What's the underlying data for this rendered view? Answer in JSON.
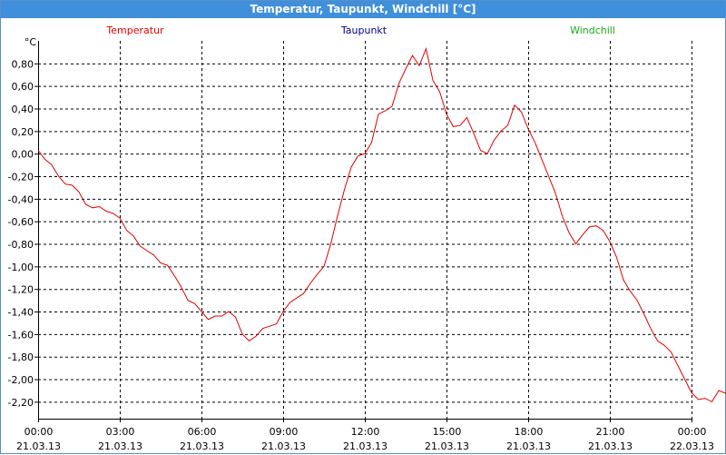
{
  "window": {
    "title": "Temperatur, Taupunkt, Windchill [°C]"
  },
  "colors": {
    "titlebar": "#3f8fdb",
    "temperature": "#e00000",
    "dewpoint": "#00008b",
    "windchill": "#1aa81a",
    "grid": "#000000"
  },
  "chart_data": {
    "type": "line",
    "title": "Temperatur, Taupunkt, Windchill [°C]",
    "ylabel": "°C",
    "xlim": [
      0,
      24
    ],
    "ylim": [
      -2.35,
      1.0
    ],
    "grid": true,
    "legend_placement": "top",
    "y_ticks": [
      0.8,
      0.6,
      0.4,
      0.2,
      0.0,
      -0.2,
      -0.4,
      -0.6,
      -0.8,
      -1.0,
      -1.2,
      -1.4,
      -1.6,
      -1.8,
      -2.0,
      -2.2
    ],
    "y_tick_labels": [
      "0,80",
      "0,60",
      "0,40",
      "0,20",
      "0,00",
      "-0,20",
      "-0,40",
      "-0,60",
      "-0,80",
      "-1,00",
      "-1,20",
      "-1,40",
      "-1,60",
      "-1,80",
      "-2,00",
      "-2,20"
    ],
    "x_ticks": [
      0,
      3,
      6,
      9,
      12,
      15,
      18,
      21,
      24
    ],
    "x_tick_labels": [
      {
        "time": "00:00",
        "date": "21.03.13"
      },
      {
        "time": "03:00",
        "date": "21.03.13"
      },
      {
        "time": "06:00",
        "date": "21.03.13"
      },
      {
        "time": "09:00",
        "date": "21.03.13"
      },
      {
        "time": "12:00",
        "date": "21.03.13"
      },
      {
        "time": "15:00",
        "date": "21.03.13"
      },
      {
        "time": "18:00",
        "date": "21.03.13"
      },
      {
        "time": "21:00",
        "date": "21.03.13"
      },
      {
        "time": "00:00",
        "date": "22.03.13"
      }
    ],
    "series": [
      {
        "name": "Temperatur",
        "color": "#e00000",
        "points": [
          [
            0.0,
            0.03
          ],
          [
            0.25,
            -0.05
          ],
          [
            0.5,
            -0.1
          ],
          [
            0.75,
            -0.2
          ],
          [
            1.0,
            -0.27
          ],
          [
            1.25,
            -0.28
          ],
          [
            1.5,
            -0.34
          ],
          [
            1.75,
            -0.45
          ],
          [
            2.0,
            -0.48
          ],
          [
            2.25,
            -0.47
          ],
          [
            2.5,
            -0.51
          ],
          [
            2.75,
            -0.53
          ],
          [
            3.0,
            -0.57
          ],
          [
            3.25,
            -0.68
          ],
          [
            3.5,
            -0.73
          ],
          [
            3.75,
            -0.82
          ],
          [
            4.0,
            -0.86
          ],
          [
            4.25,
            -0.9
          ],
          [
            4.5,
            -0.97
          ],
          [
            4.75,
            -0.99
          ],
          [
            5.0,
            -1.08
          ],
          [
            5.25,
            -1.18
          ],
          [
            5.5,
            -1.3
          ],
          [
            5.75,
            -1.33
          ],
          [
            6.0,
            -1.4
          ],
          [
            6.25,
            -1.47
          ],
          [
            6.5,
            -1.44
          ],
          [
            6.75,
            -1.44
          ],
          [
            7.0,
            -1.4
          ],
          [
            7.25,
            -1.45
          ],
          [
            7.5,
            -1.6
          ],
          [
            7.75,
            -1.66
          ],
          [
            8.0,
            -1.62
          ],
          [
            8.25,
            -1.55
          ],
          [
            8.5,
            -1.53
          ],
          [
            8.75,
            -1.51
          ],
          [
            9.0,
            -1.4
          ],
          [
            9.25,
            -1.32
          ],
          [
            9.5,
            -1.28
          ],
          [
            9.75,
            -1.24
          ],
          [
            10.0,
            -1.15
          ],
          [
            10.25,
            -1.07
          ],
          [
            10.5,
            -1.0
          ],
          [
            10.75,
            -0.8
          ],
          [
            11.0,
            -0.55
          ],
          [
            11.25,
            -0.32
          ],
          [
            11.5,
            -0.12
          ],
          [
            11.75,
            -0.02
          ],
          [
            12.0,
            0.0
          ],
          [
            12.25,
            0.1
          ],
          [
            12.5,
            0.35
          ],
          [
            12.75,
            0.38
          ],
          [
            13.0,
            0.42
          ],
          [
            13.25,
            0.62
          ],
          [
            13.5,
            0.75
          ],
          [
            13.75,
            0.87
          ],
          [
            14.0,
            0.78
          ],
          [
            14.25,
            0.93
          ],
          [
            14.5,
            0.65
          ],
          [
            14.75,
            0.55
          ],
          [
            15.0,
            0.35
          ],
          [
            15.25,
            0.24
          ],
          [
            15.5,
            0.25
          ],
          [
            15.75,
            0.32
          ],
          [
            16.0,
            0.18
          ],
          [
            16.25,
            0.03
          ],
          [
            16.5,
            0.0
          ],
          [
            16.75,
            0.12
          ],
          [
            17.0,
            0.2
          ],
          [
            17.25,
            0.25
          ],
          [
            17.5,
            0.43
          ],
          [
            17.75,
            0.37
          ],
          [
            18.0,
            0.22
          ],
          [
            18.25,
            0.1
          ],
          [
            18.5,
            -0.05
          ],
          [
            18.75,
            -0.2
          ],
          [
            19.0,
            -0.35
          ],
          [
            19.25,
            -0.55
          ],
          [
            19.5,
            -0.7
          ],
          [
            19.75,
            -0.8
          ],
          [
            20.0,
            -0.72
          ],
          [
            20.25,
            -0.65
          ],
          [
            20.5,
            -0.64
          ],
          [
            20.75,
            -0.68
          ],
          [
            21.0,
            -0.78
          ],
          [
            21.25,
            -0.92
          ],
          [
            21.5,
            -1.12
          ],
          [
            21.75,
            -1.22
          ],
          [
            22.0,
            -1.3
          ],
          [
            22.25,
            -1.42
          ],
          [
            22.5,
            -1.55
          ],
          [
            22.75,
            -1.66
          ],
          [
            23.0,
            -1.7
          ],
          [
            23.25,
            -1.76
          ],
          [
            23.5,
            -1.88
          ],
          [
            23.75,
            -2.0
          ],
          [
            24.0,
            -2.12
          ],
          [
            24.25,
            -2.18
          ],
          [
            24.5,
            -2.17
          ],
          [
            24.75,
            -2.2
          ],
          [
            25.0,
            -2.1
          ],
          [
            25.3,
            -2.13
          ]
        ]
      },
      {
        "name": "Taupunkt",
        "color": "#00008b",
        "points": []
      },
      {
        "name": "Windchill",
        "color": "#1aa81a",
        "points": []
      }
    ]
  }
}
